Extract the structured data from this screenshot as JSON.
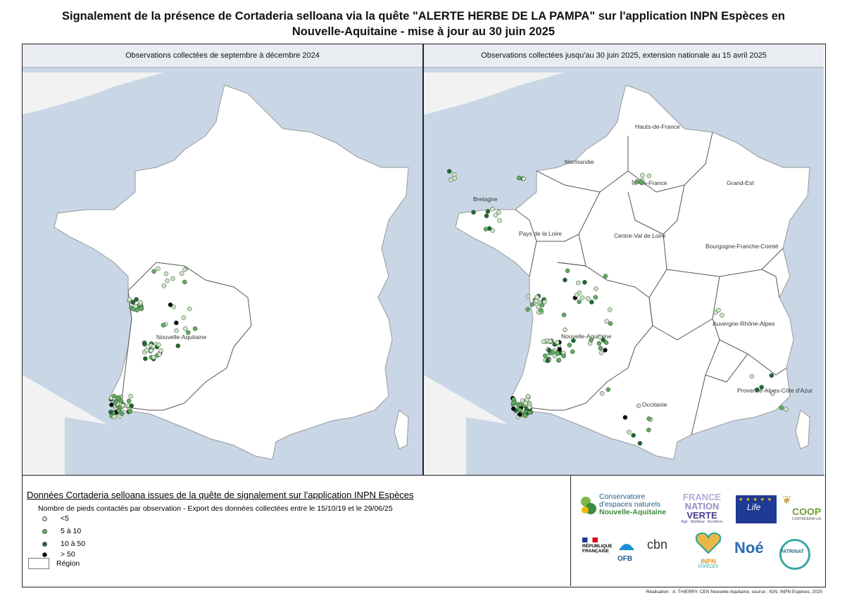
{
  "title_line1": "Signalement de la présence de Cortaderia selloana via la quête \"ALERTE HERBE DE LA PAMPA\" sur l'application INPN Espèces en",
  "title_line2": "Nouvelle-Aquitaine - mise à jour au 30 juin 2025",
  "left_panel": {
    "heading": "Observations collectées de septembre à décembre 2024",
    "region_label": "Nouvelle-Aquitaine"
  },
  "right_panel": {
    "heading": "Observations collectées jusqu'au 30 juin 2025, extension nationale au 15 avril 2025",
    "regions": [
      "Hauts-de-France",
      "Normandie",
      "Île-de-France",
      "Grand-Est",
      "Bretagne",
      "Pays de la Loire",
      "Centre-Val de Loire",
      "Bourgogne-Franche-Comté",
      "Nouvelle-Aquitaine",
      "Auvergne-Rhône-Alpes",
      "Occitanie",
      "Provence-Alpes-Côte d'Azur"
    ]
  },
  "legend": {
    "title": "Données Cortaderia selloana issues de la quête de signalement sur l'application INPN Espèces",
    "subtitle": "Nombre de pieds contactés par observation - Export des données collectées entre le 15/10/19 et le 29/06/25",
    "classes": [
      {
        "label": "<5",
        "color": "#c7e9c0"
      },
      {
        "label": "5 à 10",
        "color": "#5fae5f"
      },
      {
        "label": "10 à 50",
        "color": "#1e6b30"
      },
      {
        "label": "> 50",
        "color": "#000000"
      }
    ],
    "region_label": "Région"
  },
  "logos": {
    "cen_line1": "Conservatoire",
    "cen_line2": "d'espaces naturels",
    "cen_line3": "Nouvelle-Aquitaine",
    "fnv_line1": "FRANCE",
    "fnv_line2": "NATION",
    "fnv_line3": "VERTE",
    "fnv_tag": "Agir · Mobiliser · Accélérer",
    "life": "Life",
    "coop": "COOP",
    "coop_sub": "CORTADERIA Life",
    "rf_line1": "RÉPUBLIQUE",
    "rf_line2": "FRANÇAISE",
    "ofb": "OFB",
    "cbn": "cbn",
    "inpn": "INPN",
    "inpn_sub": "ESPÈCES",
    "noe": "Noé",
    "patrinat": "PATRINAT"
  },
  "credit": "Réalisation : A. THIERRY, CEN Nouvelle-Aquitaine, source : IGN, INPN Espèces, 2025",
  "colors": {
    "sea": "#c9d6e6",
    "land": "#ffffff",
    "c1": "#c7e9c0",
    "c2": "#5fae5f",
    "c3": "#1e6b30",
    "c4": "#000000"
  }
}
